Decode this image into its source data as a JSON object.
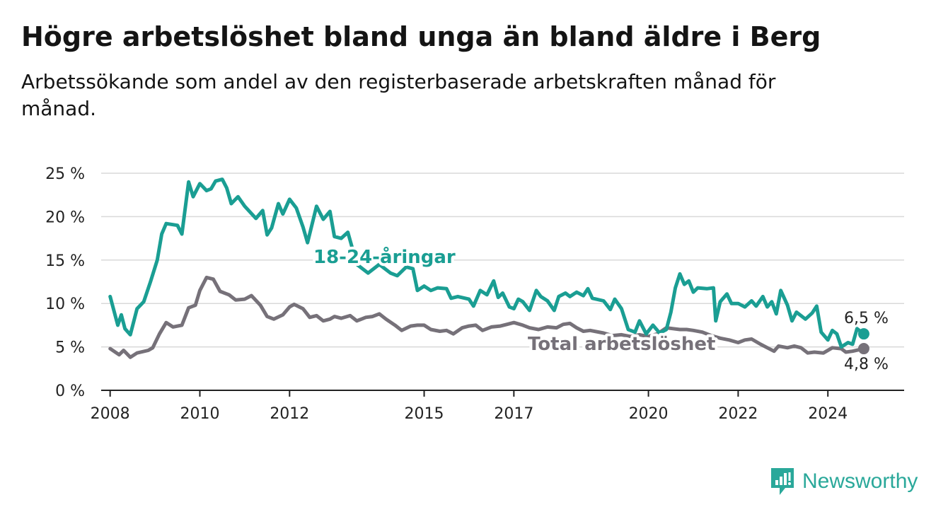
{
  "title": "Högre arbetslöshet bland unga än bland äldre i Berg",
  "subtitle": "Arbetssökande som andel av den registerbaserade arbetskraften månad för månad.",
  "brand": {
    "name": "Newsworthy",
    "color": "#2aa89a"
  },
  "chart_data": {
    "type": "line",
    "x_ticks": [
      "2008",
      "2010",
      "2012",
      "2015",
      "2017",
      "2020",
      "2022",
      "2024"
    ],
    "y_ticks": [
      "0 %",
      "5 %",
      "10 %",
      "15 %",
      "20 %",
      "25 %"
    ],
    "ylim": [
      0,
      25
    ],
    "xlim": [
      2007.8,
      2025.7
    ],
    "grid": true,
    "legend": "inline labels",
    "series": [
      {
        "name": "18-24-åringar",
        "color": "#1a9e93",
        "end_label": "6,5 %",
        "points": [
          [
            2008.0,
            10.8
          ],
          [
            2008.17,
            7.5
          ],
          [
            2008.25,
            8.7
          ],
          [
            2008.33,
            7.1
          ],
          [
            2008.45,
            6.4
          ],
          [
            2008.6,
            9.4
          ],
          [
            2008.75,
            10.2
          ],
          [
            2008.9,
            12.5
          ],
          [
            2009.05,
            15.0
          ],
          [
            2009.15,
            18.0
          ],
          [
            2009.25,
            19.2
          ],
          [
            2009.5,
            19.0
          ],
          [
            2009.6,
            18.0
          ],
          [
            2009.75,
            24.0
          ],
          [
            2009.85,
            22.3
          ],
          [
            2010.0,
            23.8
          ],
          [
            2010.15,
            23.0
          ],
          [
            2010.25,
            23.2
          ],
          [
            2010.35,
            24.1
          ],
          [
            2010.5,
            24.3
          ],
          [
            2010.6,
            23.3
          ],
          [
            2010.7,
            21.5
          ],
          [
            2010.85,
            22.3
          ],
          [
            2011.0,
            21.2
          ],
          [
            2011.25,
            19.8
          ],
          [
            2011.4,
            20.7
          ],
          [
            2011.5,
            17.9
          ],
          [
            2011.6,
            18.7
          ],
          [
            2011.75,
            21.5
          ],
          [
            2011.85,
            20.3
          ],
          [
            2012.0,
            22.0
          ],
          [
            2012.15,
            21.0
          ],
          [
            2012.3,
            18.8
          ],
          [
            2012.4,
            17.0
          ],
          [
            2012.6,
            21.2
          ],
          [
            2012.75,
            19.7
          ],
          [
            2012.9,
            20.6
          ],
          [
            2013.0,
            17.7
          ],
          [
            2013.15,
            17.5
          ],
          [
            2013.3,
            18.2
          ],
          [
            2013.5,
            14.5
          ],
          [
            2013.75,
            13.5
          ],
          [
            2014.0,
            14.5
          ],
          [
            2014.25,
            13.5
          ],
          [
            2014.4,
            13.2
          ],
          [
            2014.6,
            14.2
          ],
          [
            2014.75,
            14.0
          ],
          [
            2014.85,
            11.5
          ],
          [
            2015.0,
            12.0
          ],
          [
            2015.15,
            11.5
          ],
          [
            2015.3,
            11.8
          ],
          [
            2015.5,
            11.7
          ],
          [
            2015.6,
            10.6
          ],
          [
            2015.75,
            10.8
          ],
          [
            2016.0,
            10.5
          ],
          [
            2016.1,
            9.7
          ],
          [
            2016.25,
            11.5
          ],
          [
            2016.4,
            11.0
          ],
          [
            2016.55,
            12.6
          ],
          [
            2016.65,
            10.7
          ],
          [
            2016.75,
            11.2
          ],
          [
            2016.9,
            9.6
          ],
          [
            2017.0,
            9.4
          ],
          [
            2017.1,
            10.5
          ],
          [
            2017.2,
            10.2
          ],
          [
            2017.35,
            9.2
          ],
          [
            2017.5,
            11.5
          ],
          [
            2017.6,
            10.8
          ],
          [
            2017.75,
            10.3
          ],
          [
            2017.9,
            9.2
          ],
          [
            2018.0,
            10.8
          ],
          [
            2018.15,
            11.2
          ],
          [
            2018.25,
            10.8
          ],
          [
            2018.4,
            11.3
          ],
          [
            2018.55,
            10.9
          ],
          [
            2018.65,
            11.7
          ],
          [
            2018.75,
            10.6
          ],
          [
            2019.0,
            10.3
          ],
          [
            2019.15,
            9.3
          ],
          [
            2019.25,
            10.5
          ],
          [
            2019.4,
            9.4
          ],
          [
            2019.55,
            7.0
          ],
          [
            2019.7,
            6.7
          ],
          [
            2019.8,
            8.0
          ],
          [
            2019.95,
            6.5
          ],
          [
            2020.1,
            7.5
          ],
          [
            2020.25,
            6.6
          ],
          [
            2020.4,
            7.0
          ],
          [
            2020.5,
            9.0
          ],
          [
            2020.6,
            11.8
          ],
          [
            2020.7,
            13.4
          ],
          [
            2020.8,
            12.2
          ],
          [
            2020.9,
            12.6
          ],
          [
            2021.0,
            11.3
          ],
          [
            2021.1,
            11.8
          ],
          [
            2021.3,
            11.7
          ],
          [
            2021.45,
            11.8
          ],
          [
            2021.5,
            8.0
          ],
          [
            2021.6,
            10.2
          ],
          [
            2021.75,
            11.1
          ],
          [
            2021.85,
            10.0
          ],
          [
            2022.0,
            10.0
          ],
          [
            2022.15,
            9.6
          ],
          [
            2022.3,
            10.3
          ],
          [
            2022.4,
            9.7
          ],
          [
            2022.55,
            10.8
          ],
          [
            2022.65,
            9.6
          ],
          [
            2022.75,
            10.2
          ],
          [
            2022.85,
            8.8
          ],
          [
            2022.95,
            11.5
          ],
          [
            2023.1,
            9.8
          ],
          [
            2023.2,
            8.0
          ],
          [
            2023.3,
            9.0
          ],
          [
            2023.5,
            8.2
          ],
          [
            2023.65,
            8.9
          ],
          [
            2023.75,
            9.7
          ],
          [
            2023.85,
            6.7
          ],
          [
            2024.0,
            5.8
          ],
          [
            2024.1,
            6.9
          ],
          [
            2024.2,
            6.5
          ],
          [
            2024.3,
            5.0
          ],
          [
            2024.45,
            5.5
          ],
          [
            2024.55,
            5.3
          ],
          [
            2024.65,
            7.1
          ],
          [
            2024.8,
            6.5
          ]
        ]
      },
      {
        "name": "Total arbetslöshet",
        "color": "#767179",
        "end_label": "4,8 %",
        "points": [
          [
            2008.0,
            4.8
          ],
          [
            2008.2,
            4.1
          ],
          [
            2008.3,
            4.6
          ],
          [
            2008.45,
            3.8
          ],
          [
            2008.6,
            4.3
          ],
          [
            2008.85,
            4.6
          ],
          [
            2008.95,
            4.9
          ],
          [
            2009.1,
            6.5
          ],
          [
            2009.25,
            7.8
          ],
          [
            2009.4,
            7.3
          ],
          [
            2009.6,
            7.5
          ],
          [
            2009.75,
            9.5
          ],
          [
            2009.9,
            9.8
          ],
          [
            2010.0,
            11.5
          ],
          [
            2010.15,
            13.0
          ],
          [
            2010.3,
            12.8
          ],
          [
            2010.45,
            11.4
          ],
          [
            2010.65,
            11.0
          ],
          [
            2010.8,
            10.4
          ],
          [
            2011.0,
            10.5
          ],
          [
            2011.15,
            10.9
          ],
          [
            2011.35,
            9.8
          ],
          [
            2011.5,
            8.5
          ],
          [
            2011.65,
            8.2
          ],
          [
            2011.85,
            8.7
          ],
          [
            2012.0,
            9.6
          ],
          [
            2012.1,
            9.9
          ],
          [
            2012.3,
            9.4
          ],
          [
            2012.45,
            8.4
          ],
          [
            2012.6,
            8.6
          ],
          [
            2012.75,
            8.0
          ],
          [
            2012.9,
            8.2
          ],
          [
            2013.0,
            8.5
          ],
          [
            2013.15,
            8.3
          ],
          [
            2013.35,
            8.6
          ],
          [
            2013.5,
            8.0
          ],
          [
            2013.7,
            8.4
          ],
          [
            2013.85,
            8.5
          ],
          [
            2014.0,
            8.8
          ],
          [
            2014.15,
            8.2
          ],
          [
            2014.35,
            7.5
          ],
          [
            2014.5,
            6.9
          ],
          [
            2014.7,
            7.4
          ],
          [
            2014.85,
            7.5
          ],
          [
            2015.0,
            7.5
          ],
          [
            2015.15,
            7.0
          ],
          [
            2015.35,
            6.8
          ],
          [
            2015.5,
            6.9
          ],
          [
            2015.65,
            6.5
          ],
          [
            2015.85,
            7.2
          ],
          [
            2016.0,
            7.4
          ],
          [
            2016.15,
            7.5
          ],
          [
            2016.3,
            6.9
          ],
          [
            2016.5,
            7.3
          ],
          [
            2016.7,
            7.4
          ],
          [
            2016.85,
            7.6
          ],
          [
            2017.0,
            7.8
          ],
          [
            2017.2,
            7.5
          ],
          [
            2017.35,
            7.2
          ],
          [
            2017.55,
            7.0
          ],
          [
            2017.75,
            7.3
          ],
          [
            2017.95,
            7.2
          ],
          [
            2018.1,
            7.6
          ],
          [
            2018.25,
            7.7
          ],
          [
            2018.4,
            7.2
          ],
          [
            2018.55,
            6.8
          ],
          [
            2018.7,
            6.9
          ],
          [
            2019.0,
            6.6
          ],
          [
            2019.2,
            6.3
          ],
          [
            2019.4,
            6.4
          ],
          [
            2019.6,
            6.2
          ],
          [
            2019.8,
            6.4
          ],
          [
            2020.0,
            6.2
          ],
          [
            2020.2,
            6.5
          ],
          [
            2020.4,
            7.2
          ],
          [
            2020.55,
            7.1
          ],
          [
            2020.7,
            7.0
          ],
          [
            2020.85,
            7.0
          ],
          [
            2021.0,
            6.9
          ],
          [
            2021.2,
            6.7
          ],
          [
            2021.4,
            6.3
          ],
          [
            2021.6,
            6.0
          ],
          [
            2021.8,
            5.8
          ],
          [
            2022.0,
            5.5
          ],
          [
            2022.15,
            5.8
          ],
          [
            2022.3,
            5.9
          ],
          [
            2022.5,
            5.3
          ],
          [
            2022.65,
            4.9
          ],
          [
            2022.8,
            4.5
          ],
          [
            2022.9,
            5.1
          ],
          [
            2023.1,
            4.9
          ],
          [
            2023.25,
            5.1
          ],
          [
            2023.4,
            4.9
          ],
          [
            2023.55,
            4.3
          ],
          [
            2023.7,
            4.4
          ],
          [
            2023.9,
            4.3
          ],
          [
            2024.1,
            4.9
          ],
          [
            2024.3,
            4.8
          ],
          [
            2024.4,
            4.4
          ],
          [
            2024.55,
            4.5
          ],
          [
            2024.8,
            4.8
          ]
        ]
      }
    ]
  }
}
